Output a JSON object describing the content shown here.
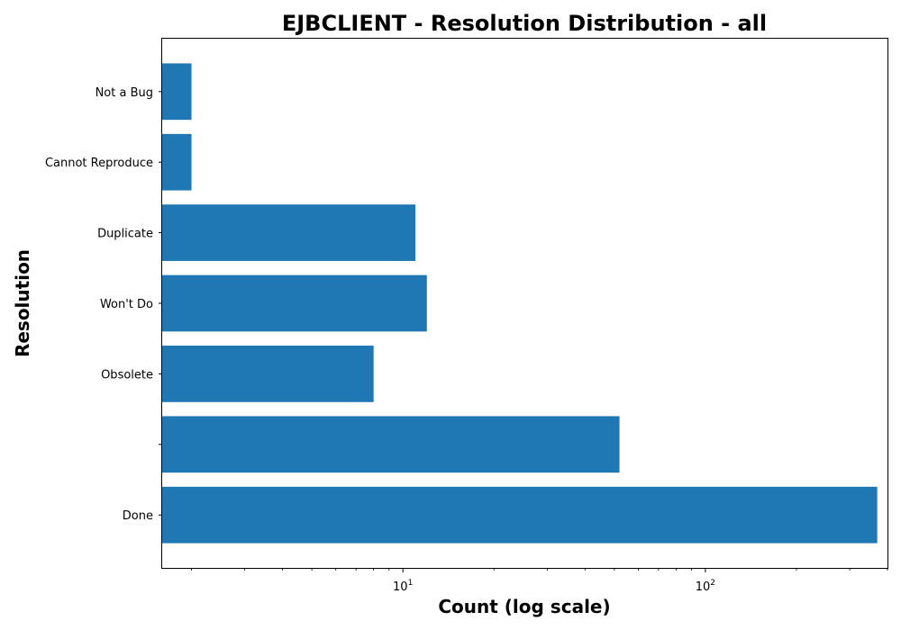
{
  "chart_data": {
    "type": "bar",
    "orientation": "horizontal",
    "title": "EJBCLIENT - Resolution Distribution - all",
    "xlabel": "Count (log scale)",
    "ylabel": "Resolution",
    "x_scale": "log",
    "xlim": [
      1.6,
      400
    ],
    "x_ticks": [
      {
        "value": 10,
        "base": "10",
        "exp": "1"
      },
      {
        "value": 100,
        "base": "10",
        "exp": "2"
      }
    ],
    "categories": [
      "Done",
      "",
      "Obsolete",
      "Won't Do",
      "Duplicate",
      "Cannot Reproduce",
      "Not a Bug"
    ],
    "values": [
      370,
      52,
      8,
      12,
      11,
      2,
      2
    ],
    "bar_color": "#1f77b4",
    "grid": false
  }
}
